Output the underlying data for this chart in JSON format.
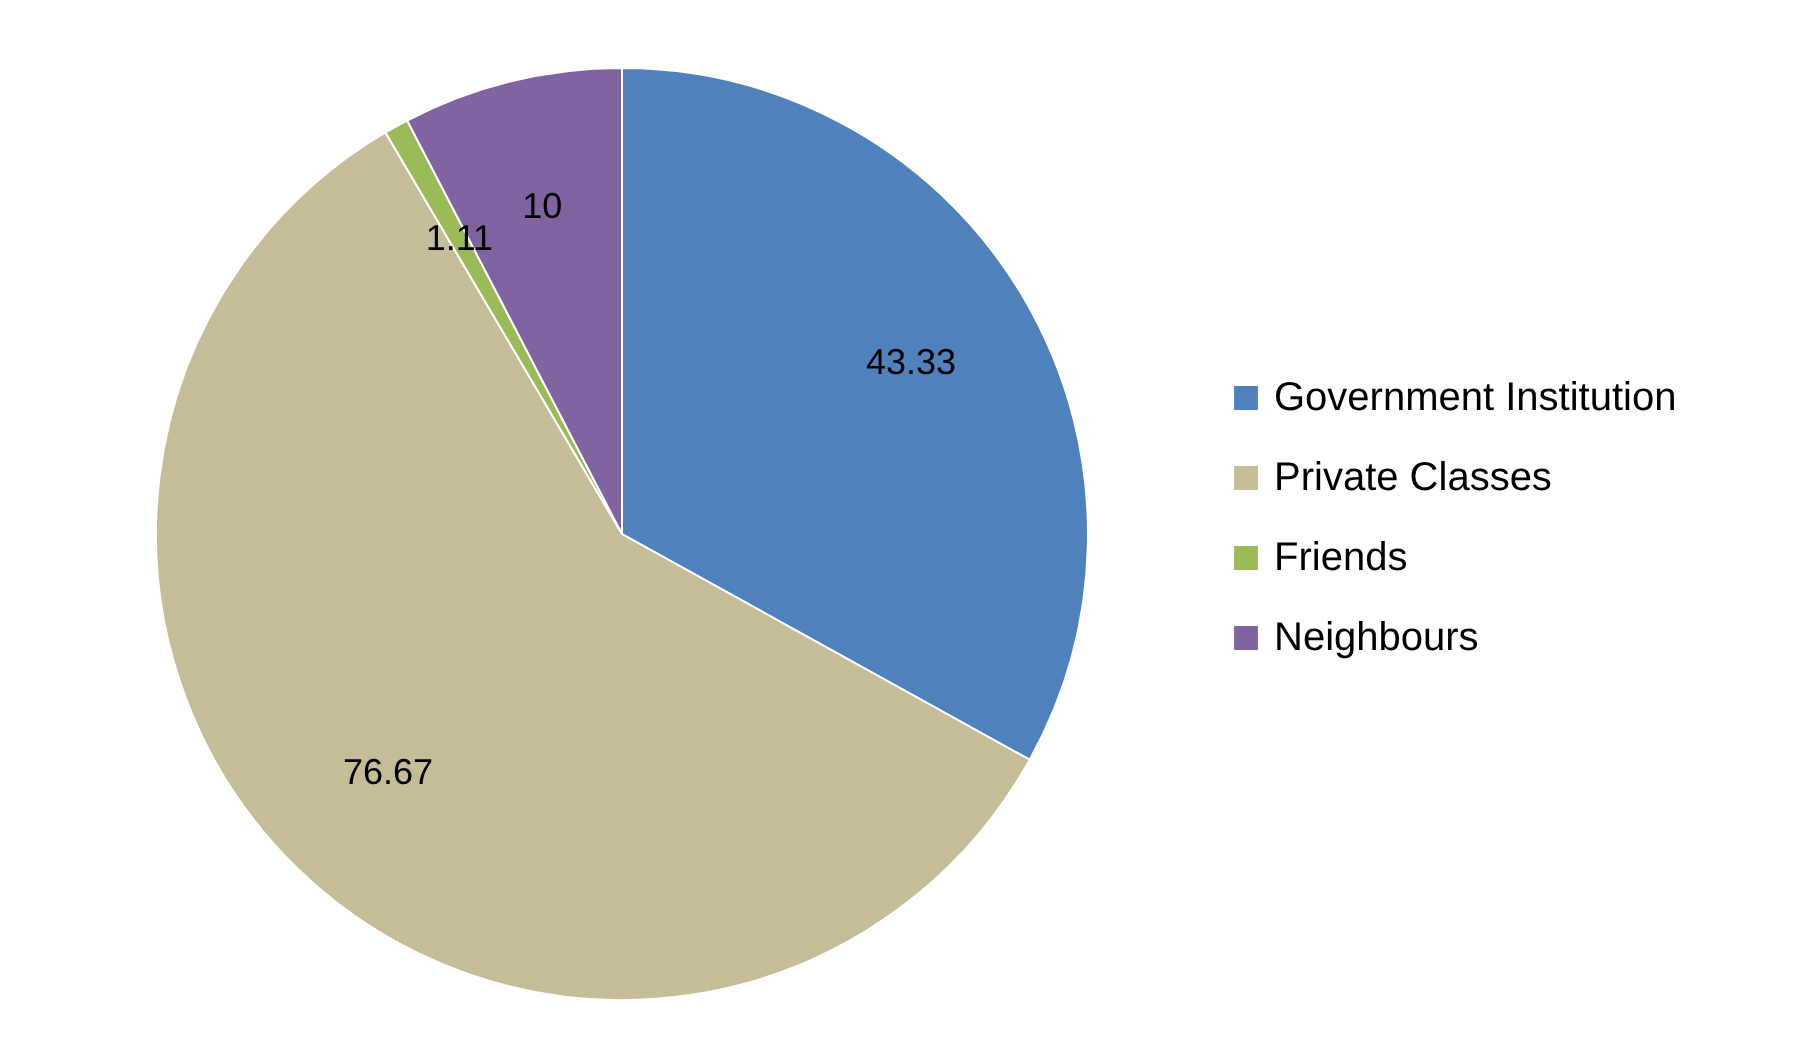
{
  "chart_data": {
    "type": "pie",
    "categories": [
      "Government Institution",
      "Private Classes",
      "Friends",
      "Neighbours"
    ],
    "values": [
      43.33,
      76.67,
      1.11,
      10
    ],
    "colors": [
      "#4f81bd",
      "#c4bd97",
      "#9bbb59",
      "#8064a2"
    ],
    "data_labels": true,
    "legend": "right"
  }
}
